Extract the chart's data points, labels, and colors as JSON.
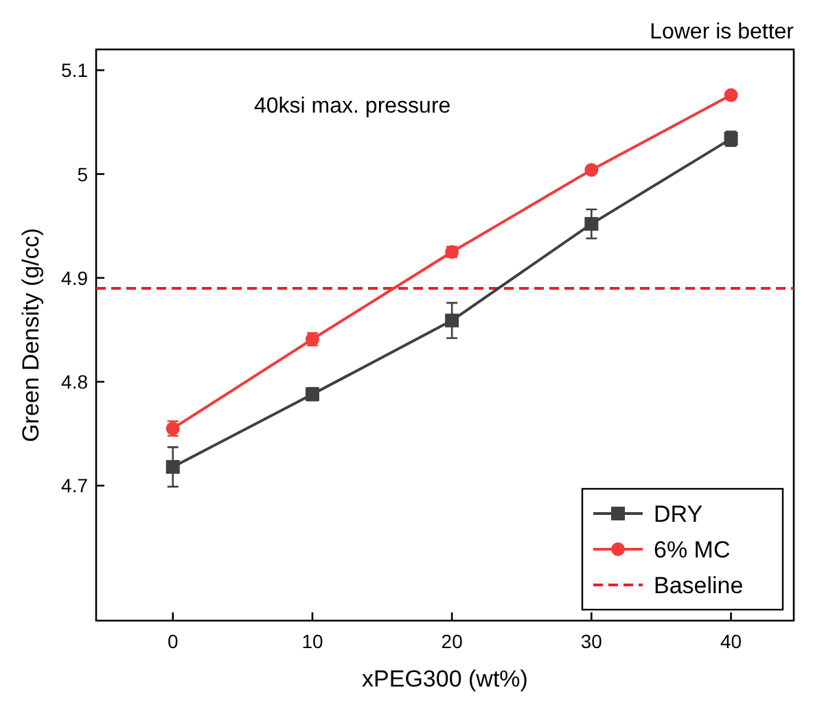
{
  "chart_data": {
    "type": "line",
    "xlabel": "xPEG300 (wt%)",
    "ylabel": "Green Density (g/cc)",
    "x": [
      0,
      10,
      20,
      30,
      40
    ],
    "series": [
      {
        "name": "DRY",
        "color": "#404040",
        "marker": "square",
        "values": [
          4.718,
          4.788,
          4.859,
          4.952,
          5.034
        ],
        "errors": [
          0.019,
          0.006,
          0.017,
          0.014,
          0.007
        ]
      },
      {
        "name": "6% MC",
        "color": "#f03c3c",
        "marker": "circle",
        "values": [
          4.755,
          4.841,
          4.925,
          5.004,
          5.076
        ],
        "errors": [
          0.007,
          0.006,
          0.005,
          0.003,
          0.002
        ]
      }
    ],
    "ref_lines": [
      {
        "axis": "y",
        "value": 4.89,
        "label": "Baseline",
        "color": "#e8202a",
        "line_style": "dashed"
      }
    ],
    "annotations": [
      "40ksi max. pressure",
      "Lower is better"
    ],
    "xlim": [
      -5.5,
      44.5
    ],
    "xticks": [
      0,
      10,
      20,
      30,
      40
    ],
    "ylim": [
      4.57,
      5.12
    ],
    "yticks": [
      4.7,
      4.8,
      4.9,
      5,
      {
        "value": 5.1,
        "label": "5.1"
      }
    ],
    "grid": false,
    "legend": "bottom right",
    "line_style": "solid"
  }
}
